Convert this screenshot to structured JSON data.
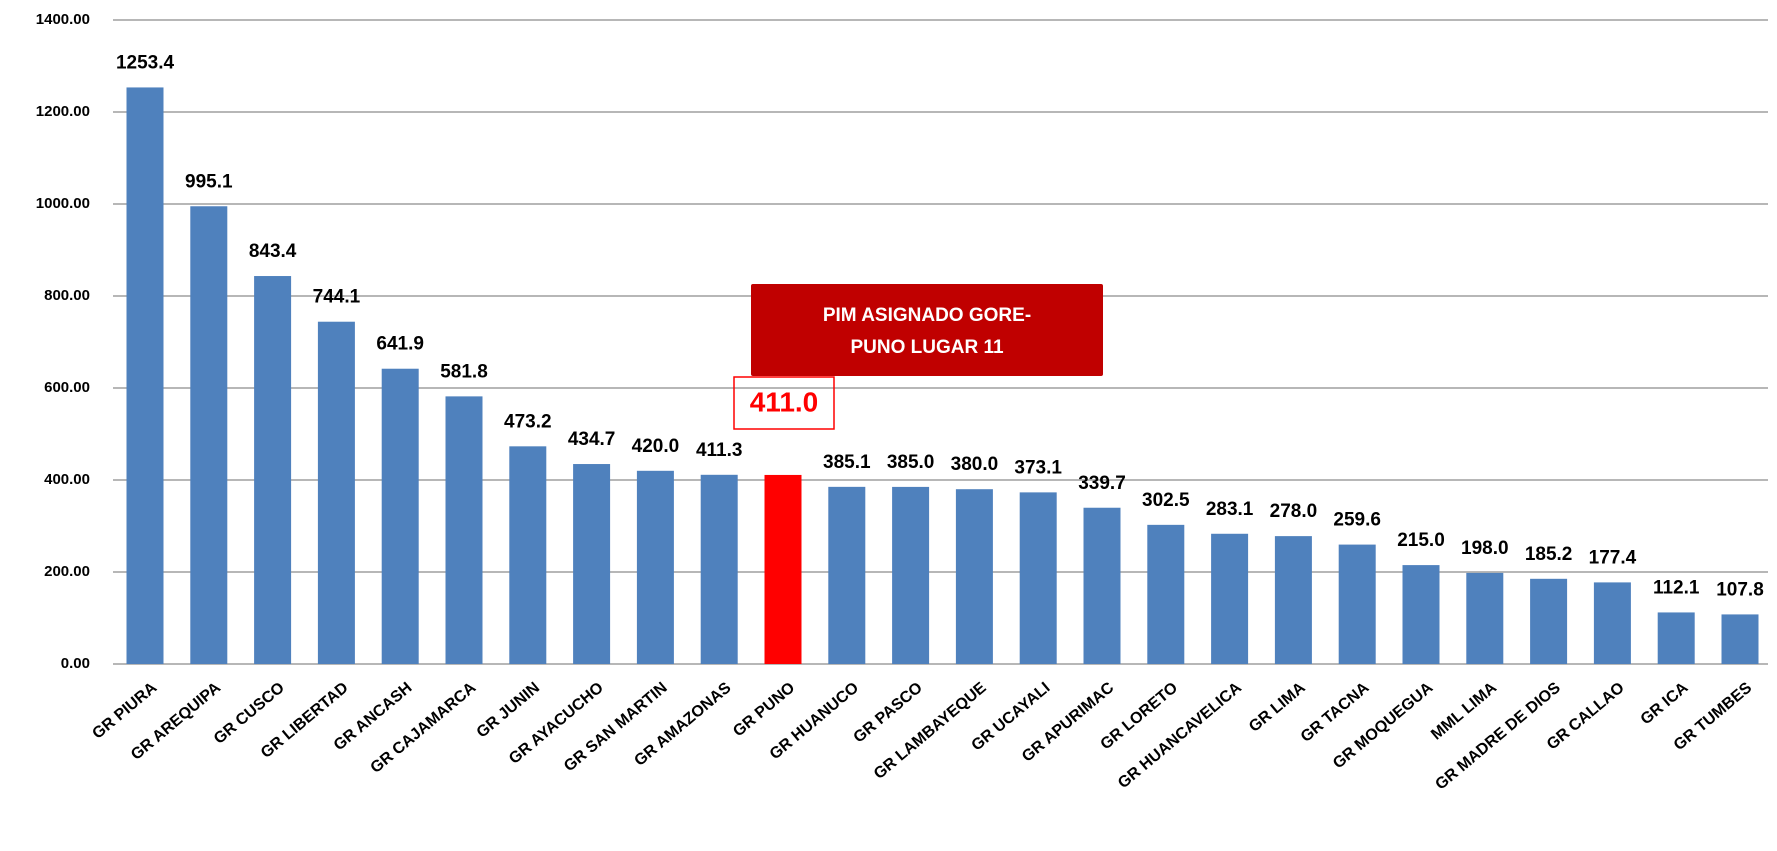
{
  "chart_data": {
    "type": "bar",
    "categories": [
      "GR PIURA",
      "GR AREQUIPA",
      "GR CUSCO",
      "GR LIBERTAD",
      "GR ANCASH",
      "GR CAJAMARCA",
      "GR JUNIN",
      "GR AYACUCHO",
      "GR SAN MARTIN",
      "GR AMAZONAS",
      "GR PUNO",
      "GR HUANUCO",
      "GR PASCO",
      "GR LAMBAYEQUE",
      "GR UCAYALI",
      "GR APURIMAC",
      "GR LORETO",
      "GR HUANCAVELICA",
      "GR LIMA",
      "GR TACNA",
      "GR MOQUEGUA",
      "MML LIMA",
      "GR MADRE DE DIOS",
      "GR CALLAO",
      "GR ICA",
      "GR TUMBES"
    ],
    "values": [
      1253.4,
      995.1,
      843.4,
      744.1,
      641.9,
      581.8,
      473.2,
      434.7,
      420.0,
      411.3,
      411.0,
      385.1,
      385.0,
      380.0,
      373.1,
      339.7,
      302.5,
      283.1,
      278.0,
      259.6,
      215.0,
      198.0,
      185.2,
      177.4,
      112.1,
      107.8
    ],
    "value_labels": [
      "1253.4",
      "995.1",
      "843.4",
      "744.1",
      "641.9",
      "581.8",
      "473.2",
      "434.7",
      "420.0",
      "411.3",
      "411.0",
      "385.1",
      "385.0",
      "380.0",
      "373.1",
      "339.7",
      "302.5",
      "283.1",
      "278.0",
      "259.6",
      "215.0",
      "198.0",
      "185.2",
      "177.4",
      "112.1",
      "107.8"
    ],
    "colors": [
      "#4f81bd",
      "#4f81bd",
      "#4f81bd",
      "#4f81bd",
      "#4f81bd",
      "#4f81bd",
      "#4f81bd",
      "#4f81bd",
      "#4f81bd",
      "#4f81bd",
      "#ff0000",
      "#4f81bd",
      "#4f81bd",
      "#4f81bd",
      "#4f81bd",
      "#4f81bd",
      "#4f81bd",
      "#4f81bd",
      "#4f81bd",
      "#4f81bd",
      "#4f81bd",
      "#4f81bd",
      "#4f81bd",
      "#4f81bd",
      "#4f81bd",
      "#4f81bd"
    ],
    "ylim": [
      0,
      1400
    ],
    "yticks": [
      {
        "value": 0,
        "label": "0.00"
      },
      {
        "value": 200,
        "label": "200.00"
      },
      {
        "value": 400,
        "label": "400.00"
      },
      {
        "value": 600,
        "label": "600.00"
      },
      {
        "value": 800,
        "label": "800.00"
      },
      {
        "value": 1000,
        "label": "1000.00"
      },
      {
        "value": 1200,
        "label": "1200.00"
      },
      {
        "value": 1400,
        "label": "1400.00"
      }
    ],
    "grid": true,
    "annotation": {
      "lines": [
        "PIM ASIGNADO GORE-",
        "PUNO LUGAR 11"
      ],
      "color": "#c00000"
    }
  }
}
